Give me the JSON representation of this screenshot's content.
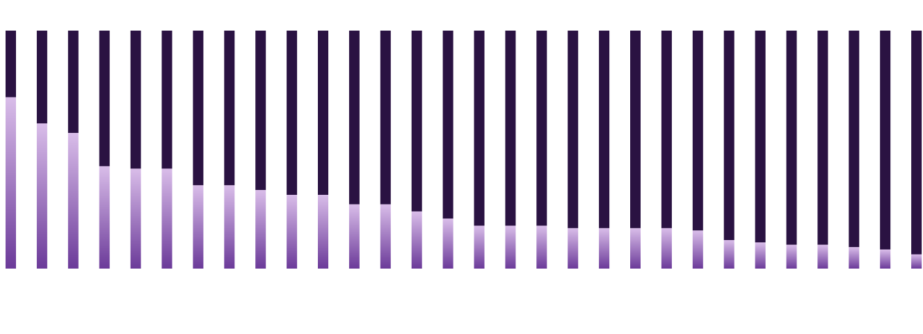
{
  "chart_data": {
    "type": "bar",
    "stacked": true,
    "categories": [
      "",
      "",
      "",
      "",
      "",
      "",
      "",
      "",
      "",
      "",
      "",
      "",
      "",
      "",
      "",
      "",
      "",
      "",
      "",
      "",
      "",
      "",
      "",
      "",
      "",
      "",
      "",
      "",
      "",
      ""
    ],
    "series": [
      {
        "values": [
          72,
          61,
          57,
          43,
          42,
          42,
          35,
          35,
          33,
          31,
          31,
          27,
          27,
          24,
          21,
          18,
          18,
          18,
          17,
          17,
          17,
          17,
          16,
          12,
          11,
          10,
          10,
          9,
          8,
          6
        ]
      },
      {
        "values": [
          28,
          39,
          43,
          57,
          58,
          58,
          65,
          65,
          67,
          69,
          69,
          73,
          73,
          76,
          79,
          82,
          82,
          82,
          83,
          83,
          83,
          83,
          84,
          88,
          89,
          90,
          90,
          91,
          92,
          94
        ]
      }
    ],
    "ylim": [
      0,
      100
    ],
    "grid": false,
    "legend": "none",
    "colors": {
      "fill_light": "#d9bde9",
      "fill_dark": "#6b3a99",
      "remainder": "#2a1242"
    }
  }
}
